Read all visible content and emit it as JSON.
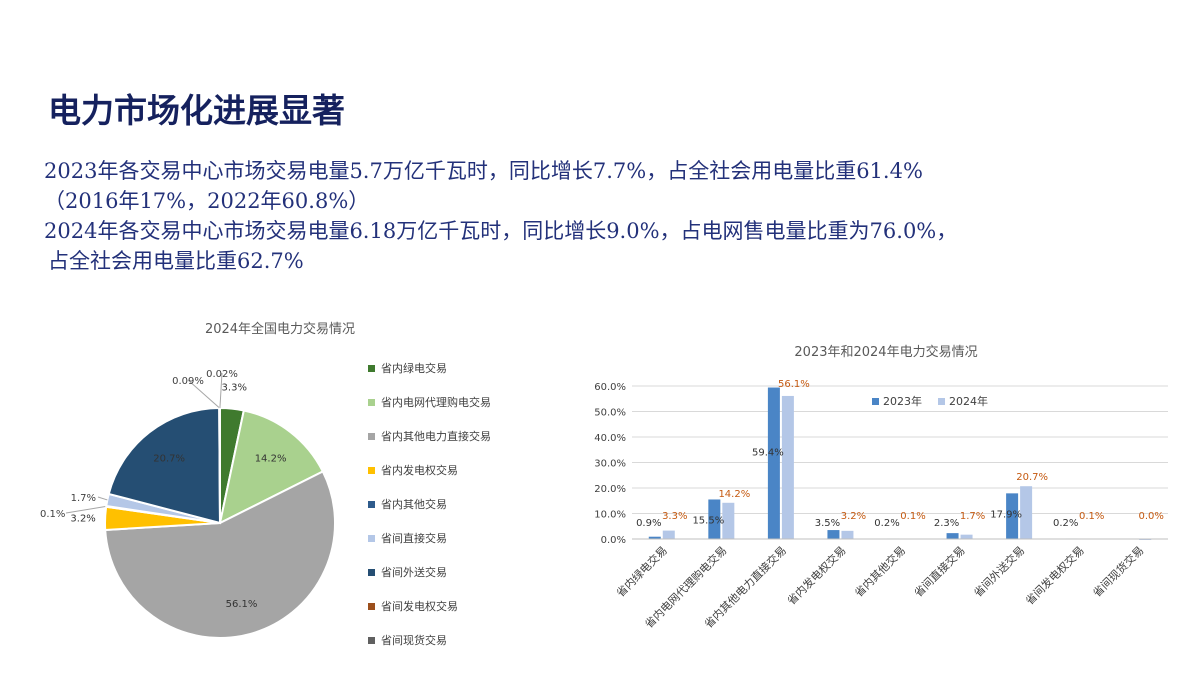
{
  "slide": {
    "title": "电力市场化进展显著",
    "paragraphs": [
      "2023年各交易中心市场交易电量5.7万亿千瓦时，同比增长7.7%，占全社会用电量比重61.4%",
      "（2016年17%，2022年60.8%）",
      "2024年各交易中心市场交易电量6.18万亿千瓦时，同比增长9.0%，占电网售电量比重为76.0%，",
      "占全社会用电量比重62.7%"
    ]
  },
  "colors": {
    "title": "#15215e",
    "text": "#23317a",
    "pie_slices": [
      "#3f7a2e",
      "#a9d18e",
      "#a5a5a5",
      "#ffc000",
      "#2e5b8c",
      "#b4c7e7",
      "#254e73",
      "#9c4f1c",
      "#606060"
    ],
    "bar_2023": "#4a85c6",
    "bar_2024": "#b4c7e7",
    "label_2023": "#333333",
    "label_2024": "#c55a11"
  },
  "chart_data": [
    {
      "type": "pie",
      "title": "2024年全国电力交易情况",
      "categories": [
        "省内绿电交易",
        "省内电网代理购电交易",
        "省内其他电力直接交易",
        "省内发电权交易",
        "省内其他交易",
        "省间直接交易",
        "省间外送交易",
        "省间发电权交易",
        "省间现货交易"
      ],
      "values": [
        3.3,
        14.2,
        56.1,
        3.2,
        0.1,
        1.7,
        20.7,
        0.09,
        0.02
      ],
      "labels": [
        "3.3%",
        "14.2%",
        "56.1%",
        "3.2%",
        "0.1%",
        "1.7%",
        "20.7%",
        "0.09%",
        "0.02%"
      ],
      "legend": "right"
    },
    {
      "type": "bar",
      "title": "2023年和2024年电力交易情况",
      "categories": [
        "省内绿电交易",
        "省内电网代理购电交易",
        "省内其他电力直接交易",
        "省内发电权交易",
        "省内其他交易",
        "省间直接交易",
        "省间外送交易",
        "省间发电权交易",
        "省间现货交易"
      ],
      "series": [
        {
          "name": "2023年",
          "values": [
            0.9,
            15.5,
            59.4,
            3.5,
            0.2,
            2.3,
            17.9,
            0.2,
            0.0
          ],
          "labels": [
            "0.9%",
            "15.5%",
            "59.4%",
            "3.5%",
            "0.2%",
            "2.3%",
            "17.9%",
            "0.2%",
            ""
          ]
        },
        {
          "name": "2024年",
          "values": [
            3.3,
            14.2,
            56.1,
            3.2,
            0.1,
            1.7,
            20.7,
            0.1,
            0.0
          ],
          "labels": [
            "3.3%",
            "14.2%",
            "56.1%",
            "3.2%",
            "0.1%",
            "1.7%",
            "20.7%",
            "0.1%",
            "0.0%"
          ]
        }
      ],
      "yticks": [
        "0.0%",
        "10.0%",
        "20.0%",
        "30.0%",
        "40.0%",
        "50.0%",
        "60.0%"
      ],
      "ylim": [
        0,
        60
      ],
      "grid": true,
      "legend": "top-center"
    }
  ]
}
